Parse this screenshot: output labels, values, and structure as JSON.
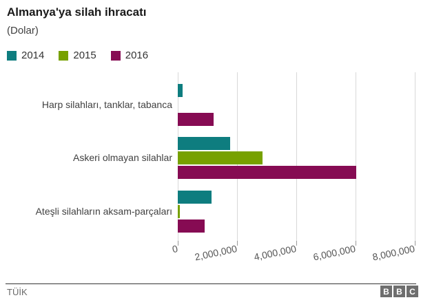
{
  "header": {
    "title": "Almanya'ya silah ihracatı",
    "subtitle": "(Dolar)"
  },
  "legend": {
    "items": [
      {
        "label": "2014"
      },
      {
        "label": "2015"
      },
      {
        "label": "2016"
      }
    ]
  },
  "chart_data": {
    "type": "bar",
    "orientation": "horizontal",
    "title": "Almanya'ya silah ihracatı",
    "subtitle": "(Dolar)",
    "unit": "Dolar",
    "categories": [
      "Harp silahları, tanklar, tabanca",
      "Askeri olmayan silahlar",
      "Ateşli silahların aksam-parçaları"
    ],
    "series": [
      {
        "name": "2014",
        "color": "#0e7d7f",
        "values": [
          170000,
          1770000,
          1150000
        ]
      },
      {
        "name": "2015",
        "color": "#77a100",
        "values": [
          0,
          2860000,
          70000
        ]
      },
      {
        "name": "2016",
        "color": "#860b53",
        "values": [
          1220000,
          6020000,
          910000
        ]
      }
    ],
    "xlim": [
      0,
      8000000
    ],
    "tick_values": [
      0,
      2000000,
      4000000,
      6000000,
      8000000
    ],
    "x_tick_labels": [
      "0",
      "2,000,000",
      "4,000,000",
      "6,000,000",
      "8,000,000"
    ],
    "grid": "vertical",
    "legend_position": "top"
  },
  "footer": {
    "source": "TÜİK",
    "logo_blocks": [
      "B",
      "B",
      "C"
    ]
  }
}
